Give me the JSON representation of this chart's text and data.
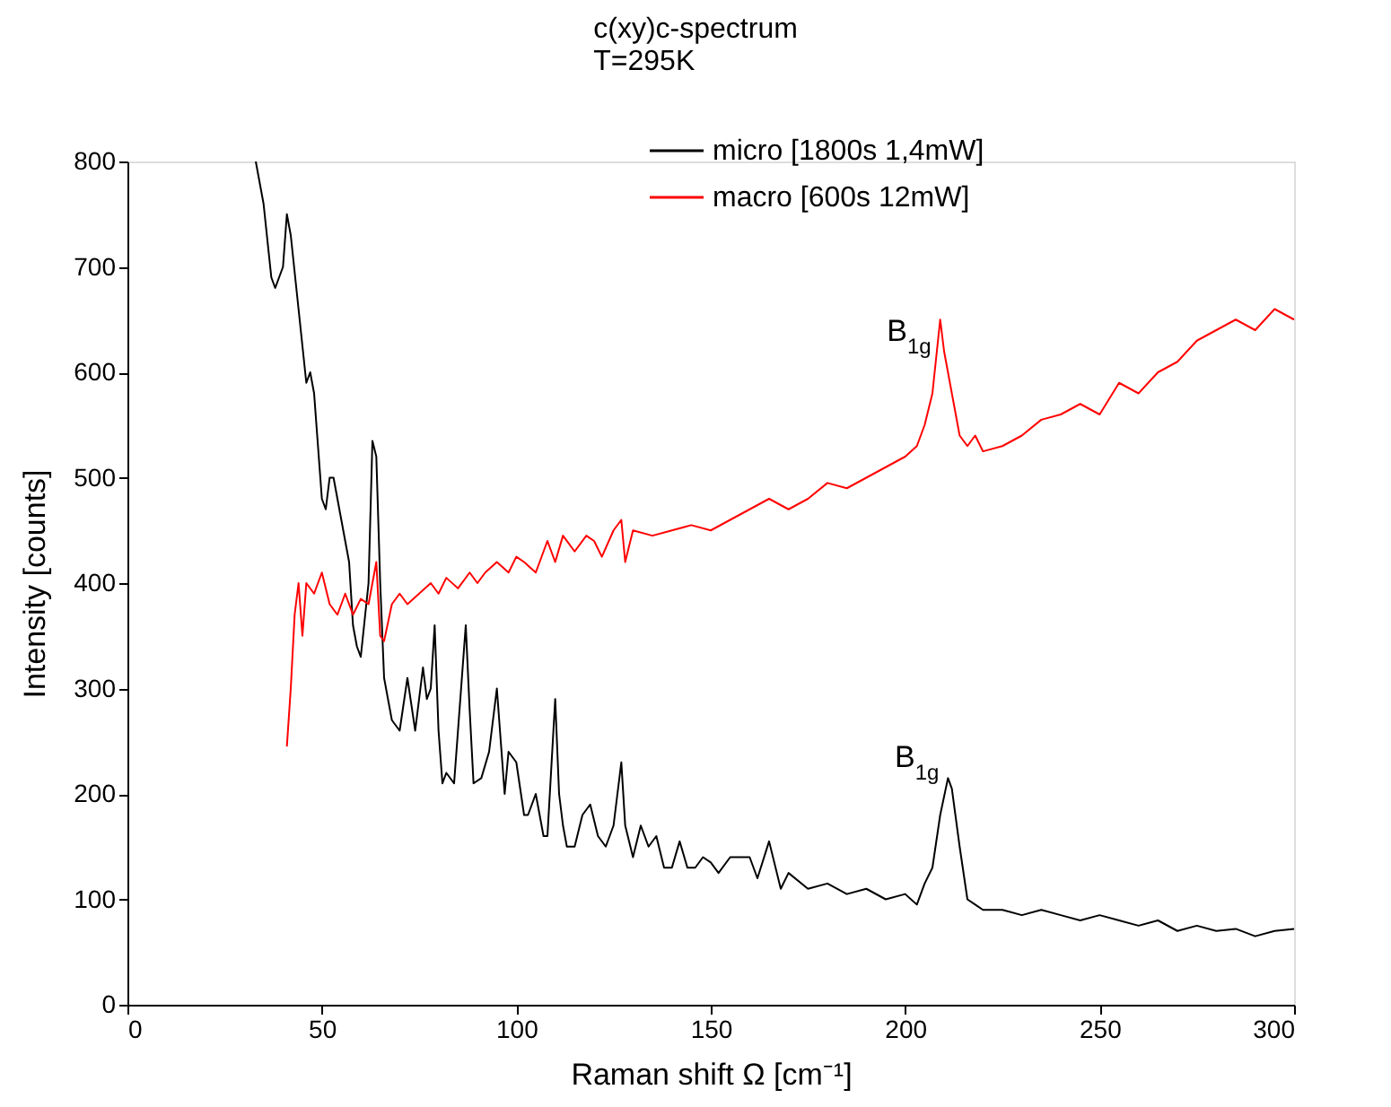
{
  "chart_data": {
    "type": "line",
    "title": "c(xy)c-spectrum",
    "subtitle": "T=295K",
    "xlabel": "Raman shift Ω [cm⁻¹]",
    "ylabel": "Intensity [counts]",
    "xlim": [
      0,
      300
    ],
    "ylim": [
      0,
      800
    ],
    "xticks": [
      0,
      50,
      100,
      150,
      200,
      250,
      300
    ],
    "yticks": [
      0,
      100,
      200,
      300,
      400,
      500,
      600,
      700,
      800
    ],
    "grid": false,
    "legend": "top right",
    "marker": "none",
    "line_style": "solid",
    "series": [
      {
        "name": "micro [1800s 1,4mW]",
        "color": "#000000",
        "x": [
          33,
          35,
          37,
          38,
          40,
          41,
          42,
          44,
          46,
          47,
          48,
          50,
          51,
          52,
          53,
          55,
          56,
          57,
          58,
          59,
          60,
          62,
          63,
          64,
          65,
          66,
          68,
          70,
          72,
          74,
          76,
          77,
          78,
          79,
          80,
          81,
          82,
          84,
          85,
          87,
          88,
          89,
          91,
          93,
          95,
          96,
          97,
          98,
          100,
          102,
          103,
          105,
          107,
          108,
          110,
          111,
          112,
          113,
          115,
          117,
          119,
          121,
          123,
          125,
          127,
          128,
          130,
          132,
          134,
          136,
          138,
          140,
          142,
          144,
          146,
          148,
          150,
          152,
          155,
          158,
          160,
          162,
          165,
          168,
          170,
          175,
          180,
          185,
          190,
          195,
          200,
          203,
          205,
          207,
          209,
          211,
          212,
          214,
          216,
          218,
          220,
          225,
          230,
          235,
          240,
          245,
          250,
          255,
          260,
          265,
          270,
          275,
          280,
          285,
          290,
          295,
          300
        ],
        "values": [
          800,
          760,
          690,
          680,
          700,
          750,
          730,
          660,
          590,
          600,
          580,
          480,
          470,
          500,
          500,
          460,
          440,
          420,
          360,
          340,
          330,
          400,
          535,
          520,
          400,
          310,
          270,
          260,
          310,
          260,
          320,
          290,
          300,
          360,
          260,
          210,
          220,
          210,
          260,
          360,
          280,
          210,
          215,
          240,
          300,
          250,
          200,
          240,
          230,
          180,
          180,
          200,
          160,
          160,
          290,
          200,
          170,
          150,
          150,
          180,
          190,
          160,
          150,
          170,
          230,
          170,
          140,
          170,
          150,
          160,
          130,
          130,
          155,
          130,
          130,
          140,
          135,
          125,
          140,
          140,
          140,
          120,
          155,
          110,
          125,
          110,
          115,
          105,
          110,
          100,
          105,
          95,
          115,
          130,
          180,
          215,
          205,
          150,
          100,
          95,
          90,
          90,
          85,
          90,
          85,
          80,
          85,
          80,
          75,
          80,
          70,
          75,
          70,
          72,
          65,
          70,
          72
        ]
      },
      {
        "name": "macro [600s 12mW]",
        "color": "#ff0000",
        "x": [
          41,
          42,
          43,
          44,
          45,
          46,
          48,
          50,
          52,
          54,
          56,
          58,
          60,
          62,
          64,
          65,
          66,
          68,
          70,
          72,
          75,
          78,
          80,
          82,
          85,
          88,
          90,
          92,
          95,
          98,
          100,
          102,
          105,
          108,
          110,
          112,
          115,
          118,
          120,
          122,
          125,
          127,
          128,
          130,
          135,
          140,
          145,
          150,
          155,
          160,
          165,
          170,
          175,
          180,
          185,
          190,
          195,
          200,
          203,
          205,
          207,
          209,
          210,
          212,
          214,
          216,
          218,
          220,
          225,
          230,
          235,
          240,
          245,
          250,
          255,
          260,
          265,
          270,
          275,
          280,
          285,
          290,
          295,
          300
        ],
        "values": [
          245,
          300,
          370,
          400,
          350,
          400,
          390,
          410,
          380,
          370,
          390,
          370,
          385,
          380,
          420,
          350,
          345,
          380,
          390,
          380,
          390,
          400,
          390,
          405,
          395,
          410,
          400,
          410,
          420,
          410,
          425,
          420,
          410,
          440,
          420,
          445,
          430,
          445,
          440,
          425,
          450,
          460,
          420,
          450,
          445,
          450,
          455,
          450,
          460,
          470,
          480,
          470,
          480,
          495,
          490,
          500,
          510,
          520,
          530,
          550,
          580,
          650,
          620,
          580,
          540,
          530,
          540,
          525,
          530,
          540,
          555,
          560,
          570,
          560,
          590,
          580,
          600,
          610,
          630,
          640,
          650,
          640,
          660,
          650
        ]
      }
    ],
    "annotations": [
      {
        "text": "B$_{1g}$",
        "x": 207,
        "y": 620
      },
      {
        "text": "B$_{1g}$",
        "x": 209,
        "y": 215
      }
    ]
  }
}
